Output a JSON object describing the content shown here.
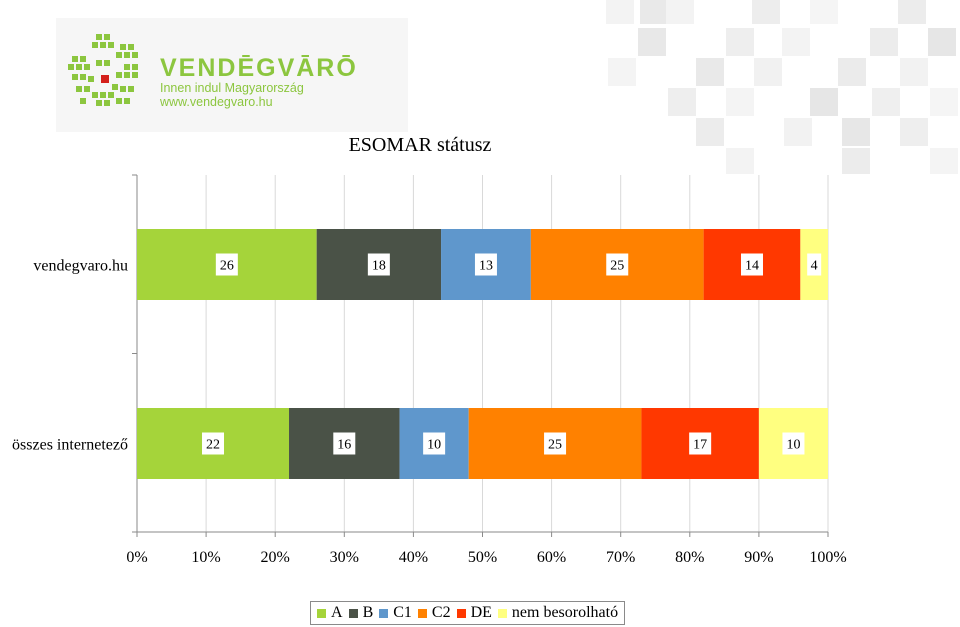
{
  "logo": {
    "name": "VENDĒGVĀRŌ",
    "tagline": "Innen indul Magyarország",
    "url": "www.vendegvaro.hu"
  },
  "colors": {
    "A": "#a5d43a",
    "B": "#4a5247",
    "C1": "#5f97cc",
    "C2": "#ff8100",
    "DE": "#ff3800",
    "nem besorolható": "#ffff80",
    "grid": "#d9d9d9",
    "logo_green": "#8cc63f"
  },
  "chart_data": {
    "type": "bar",
    "orientation": "horizontal",
    "stacked": "percent",
    "title": "ESOMAR státusz",
    "categories": [
      "vendegvaro.hu",
      "összes internetező"
    ],
    "series": [
      {
        "name": "A",
        "values": [
          26,
          22
        ]
      },
      {
        "name": "B",
        "values": [
          18,
          16
        ]
      },
      {
        "name": "C1",
        "values": [
          13,
          10
        ]
      },
      {
        "name": "C2",
        "values": [
          25,
          25
        ]
      },
      {
        "name": "DE",
        "values": [
          14,
          17
        ]
      },
      {
        "name": "nem besorolható",
        "values": [
          4,
          10
        ]
      }
    ],
    "xticks": [
      "0%",
      "10%",
      "20%",
      "30%",
      "40%",
      "50%",
      "60%",
      "70%",
      "80%",
      "90%",
      "100%"
    ],
    "xlim": [
      0,
      100
    ],
    "grid": true,
    "legend_position": "bottom"
  }
}
